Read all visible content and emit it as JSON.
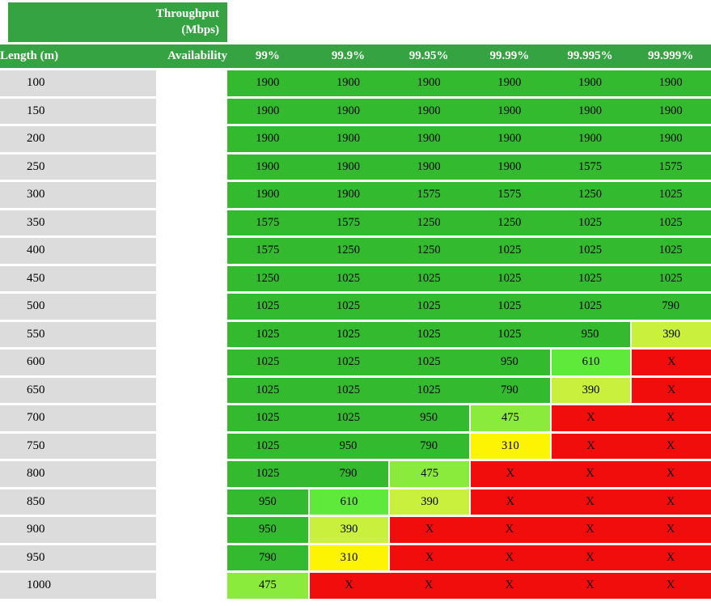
{
  "title_block": {
    "line1": "Throughput",
    "line2": "(Mbps)"
  },
  "colors": {
    "header_green": "#36A342",
    "header_text": "#FFFFFF",
    "cell_text": "#000000",
    "row_label_bg": "#DCDCDC",
    "cell_green": "#33BA2F",
    "bright_green": "#5FE93B",
    "light_green": "#8BEB3D",
    "yellow_green": "#C9F03C",
    "yellow": "#FDF403",
    "red": "#F20D0D"
  },
  "value_colors": {
    "1900": "cell_green",
    "1575": "cell_green",
    "1250": "cell_green",
    "1025": "cell_green",
    "950": "cell_green",
    "790": "cell_green",
    "610": "bright_green",
    "475": "light_green",
    "390": "yellow_green",
    "310": "yellow",
    "X": "red"
  },
  "chart_data": {
    "type": "table",
    "title": "Throughput (Mbps)",
    "row_axis_label": "Length (m)",
    "column_axis_label": "Availability",
    "columns": [
      "99%",
      "99.9%",
      "99.95%",
      "99.99%",
      "99.995%",
      "99.999%"
    ],
    "rows": [
      {
        "length": "100",
        "values": [
          "1900",
          "1900",
          "1900",
          "1900",
          "1900",
          "1900"
        ]
      },
      {
        "length": "150",
        "values": [
          "1900",
          "1900",
          "1900",
          "1900",
          "1900",
          "1900"
        ]
      },
      {
        "length": "200",
        "values": [
          "1900",
          "1900",
          "1900",
          "1900",
          "1900",
          "1900"
        ]
      },
      {
        "length": "250",
        "values": [
          "1900",
          "1900",
          "1900",
          "1900",
          "1575",
          "1575"
        ]
      },
      {
        "length": "300",
        "values": [
          "1900",
          "1900",
          "1575",
          "1575",
          "1250",
          "1025"
        ]
      },
      {
        "length": "350",
        "values": [
          "1575",
          "1575",
          "1250",
          "1250",
          "1025",
          "1025"
        ]
      },
      {
        "length": "400",
        "values": [
          "1575",
          "1250",
          "1250",
          "1025",
          "1025",
          "1025"
        ]
      },
      {
        "length": "450",
        "values": [
          "1250",
          "1025",
          "1025",
          "1025",
          "1025",
          "1025"
        ]
      },
      {
        "length": "500",
        "values": [
          "1025",
          "1025",
          "1025",
          "1025",
          "1025",
          "790"
        ]
      },
      {
        "length": "550",
        "values": [
          "1025",
          "1025",
          "1025",
          "1025",
          "950",
          "390"
        ]
      },
      {
        "length": "600",
        "values": [
          "1025",
          "1025",
          "1025",
          "950",
          "610",
          "X"
        ]
      },
      {
        "length": "650",
        "values": [
          "1025",
          "1025",
          "1025",
          "790",
          "390",
          "X"
        ]
      },
      {
        "length": "700",
        "values": [
          "1025",
          "1025",
          "950",
          "475",
          "X",
          "X"
        ]
      },
      {
        "length": "750",
        "values": [
          "1025",
          "950",
          "790",
          "310",
          "X",
          "X"
        ]
      },
      {
        "length": "800",
        "values": [
          "1025",
          "790",
          "475",
          "X",
          "X",
          "X"
        ]
      },
      {
        "length": "850",
        "values": [
          "950",
          "610",
          "390",
          "X",
          "X",
          "X"
        ]
      },
      {
        "length": "900",
        "values": [
          "950",
          "390",
          "X",
          "X",
          "X",
          "X"
        ]
      },
      {
        "length": "950",
        "values": [
          "790",
          "310",
          "X",
          "X",
          "X",
          "X"
        ]
      },
      {
        "length": "1000",
        "values": [
          "475",
          "X",
          "X",
          "X",
          "X",
          "X"
        ]
      }
    ]
  }
}
